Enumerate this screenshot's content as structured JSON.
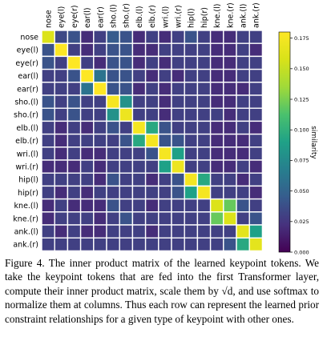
{
  "chart_data": {
    "type": "heatmap",
    "row_labels": [
      "nose",
      "eye(l)",
      "eye(r)",
      "ear(l)",
      "ear(r)",
      "sho.(l)",
      "sho.(r)",
      "elb.(l)",
      "elb.(r)",
      "wri.(l)",
      "wri.(r)",
      "hip(l)",
      "hip(r)",
      "kne.(l)",
      "kne.(r)",
      "ank.(l)",
      "ank.(r)"
    ],
    "col_labels": [
      "nose",
      "eye(l)",
      "eye(r)",
      "ear(l)",
      "ear(r)",
      "sho.(l)",
      "sho.(r)",
      "elb.(l)",
      "elb.(r)",
      "wri.(l)",
      "wri.(r)",
      "hip(l)",
      "hip(r)",
      "kne.(l)",
      "kne.(r)",
      "ank.(l)",
      "ank.(r)"
    ],
    "values": [
      [
        0.16,
        0.035,
        0.04,
        0.02,
        0.03,
        0.045,
        0.04,
        0.02,
        0.03,
        0.02,
        0.03,
        0.04,
        0.03,
        0.02,
        0.02,
        0.03,
        0.03
      ],
      [
        0.04,
        0.18,
        0.03,
        0.02,
        0.03,
        0.04,
        0.04,
        0.02,
        0.02,
        0.03,
        0.03,
        0.03,
        0.03,
        0.02,
        0.02,
        0.03,
        0.02
      ],
      [
        0.04,
        0.03,
        0.18,
        0.03,
        0.02,
        0.04,
        0.04,
        0.02,
        0.03,
        0.02,
        0.03,
        0.03,
        0.03,
        0.02,
        0.02,
        0.03,
        0.03
      ],
      [
        0.03,
        0.03,
        0.04,
        0.18,
        0.06,
        0.04,
        0.04,
        0.03,
        0.02,
        0.03,
        0.02,
        0.03,
        0.03,
        0.02,
        0.02,
        0.03,
        0.03
      ],
      [
        0.03,
        0.03,
        0.03,
        0.06,
        0.18,
        0.04,
        0.04,
        0.02,
        0.03,
        0.02,
        0.03,
        0.03,
        0.03,
        0.02,
        0.02,
        0.02,
        0.03
      ],
      [
        0.04,
        0.03,
        0.04,
        0.03,
        0.03,
        0.175,
        0.08,
        0.03,
        0.03,
        0.02,
        0.03,
        0.03,
        0.03,
        0.02,
        0.02,
        0.03,
        0.03
      ],
      [
        0.04,
        0.03,
        0.04,
        0.03,
        0.03,
        0.08,
        0.17,
        0.03,
        0.03,
        0.02,
        0.03,
        0.03,
        0.03,
        0.03,
        0.02,
        0.03,
        0.03
      ],
      [
        0.03,
        0.02,
        0.03,
        0.02,
        0.03,
        0.04,
        0.03,
        0.175,
        0.095,
        0.04,
        0.03,
        0.03,
        0.03,
        0.02,
        0.02,
        0.03,
        0.02
      ],
      [
        0.03,
        0.02,
        0.03,
        0.03,
        0.03,
        0.03,
        0.04,
        0.095,
        0.175,
        0.04,
        0.04,
        0.03,
        0.03,
        0.02,
        0.02,
        0.02,
        0.03
      ],
      [
        0.03,
        0.02,
        0.03,
        0.02,
        0.02,
        0.03,
        0.03,
        0.03,
        0.04,
        0.175,
        0.09,
        0.03,
        0.03,
        0.02,
        0.02,
        0.02,
        0.03
      ],
      [
        0.02,
        0.02,
        0.02,
        0.03,
        0.02,
        0.03,
        0.03,
        0.03,
        0.03,
        0.09,
        0.17,
        0.03,
        0.03,
        0.02,
        0.02,
        0.03,
        0.02
      ],
      [
        0.03,
        0.03,
        0.03,
        0.03,
        0.02,
        0.04,
        0.03,
        0.03,
        0.02,
        0.03,
        0.04,
        0.175,
        0.095,
        0.03,
        0.03,
        0.02,
        0.03
      ],
      [
        0.03,
        0.02,
        0.03,
        0.02,
        0.03,
        0.03,
        0.03,
        0.03,
        0.03,
        0.03,
        0.04,
        0.09,
        0.175,
        0.03,
        0.03,
        0.03,
        0.02
      ],
      [
        0.02,
        0.03,
        0.02,
        0.02,
        0.02,
        0.04,
        0.03,
        0.03,
        0.02,
        0.03,
        0.03,
        0.03,
        0.03,
        0.16,
        0.12,
        0.04,
        0.03
      ],
      [
        0.02,
        0.03,
        0.03,
        0.03,
        0.02,
        0.03,
        0.04,
        0.03,
        0.03,
        0.03,
        0.03,
        0.03,
        0.03,
        0.12,
        0.16,
        0.03,
        0.04
      ],
      [
        0.03,
        0.02,
        0.03,
        0.02,
        0.02,
        0.03,
        0.03,
        0.03,
        0.02,
        0.03,
        0.03,
        0.03,
        0.03,
        0.03,
        0.03,
        0.165,
        0.09
      ],
      [
        0.03,
        0.03,
        0.03,
        0.03,
        0.03,
        0.03,
        0.03,
        0.03,
        0.03,
        0.03,
        0.03,
        0.03,
        0.03,
        0.03,
        0.04,
        0.095,
        0.165
      ]
    ],
    "colormap": "viridis",
    "vmin": 0.0,
    "vmax": 0.18,
    "colorbar_ticks": [
      "0.000",
      "0.025",
      "0.050",
      "0.075",
      "0.100",
      "0.125",
      "0.150",
      "0.175"
    ],
    "colorbar_label": "similarity",
    "grid": true
  },
  "caption": {
    "text": "Figure 4. The inner product matrix of the learned keypoint tokens. We take the keypoint tokens that are fed into the first Transformer layer, compute their inner product matrix, scale them by √d, and use softmax to normalize them at columns. Thus each row can represent the learned prior constraint relationships for a given type of keypoint with other ones."
  }
}
